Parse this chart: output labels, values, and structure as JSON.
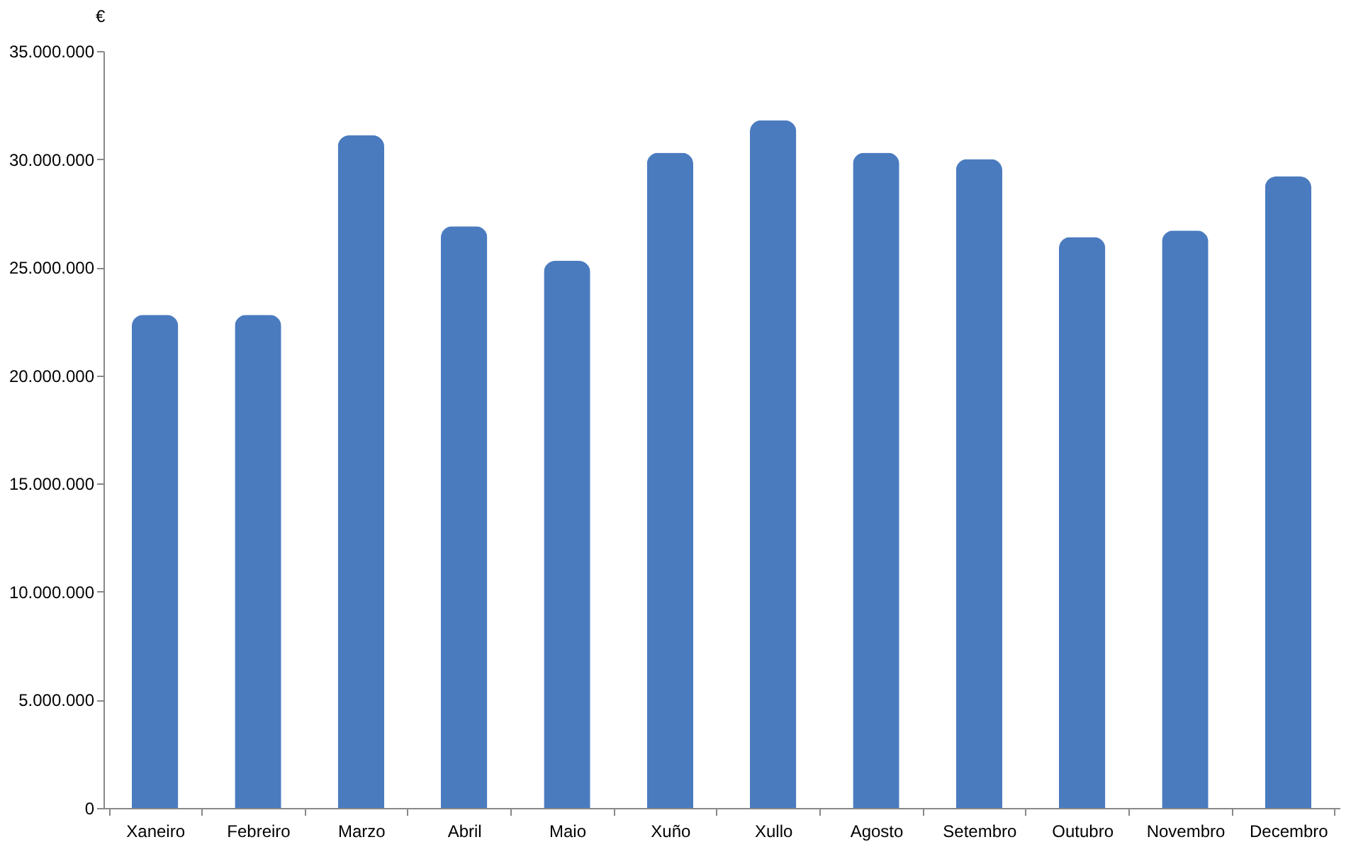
{
  "chart_data": {
    "type": "bar",
    "ylabel": "€",
    "categories": [
      "Xaneiro",
      "Febreiro",
      "Marzo",
      "Abril",
      "Maio",
      "Xuño",
      "Xullo",
      "Agosto",
      "Setembro",
      "Outubro",
      "Novembro",
      "Decembro"
    ],
    "series": [
      {
        "color": "#4a7bbf",
        "values": [
          22800000,
          22800000,
          31100000,
          26900000,
          25300000,
          30300000,
          31800000,
          30300000,
          30000000,
          26400000,
          26700000,
          29200000
        ]
      }
    ],
    "ylim": [
      0,
      35000000
    ],
    "yticks": [
      0,
      {
        "value": 5000000,
        "label": "5.000.000"
      },
      {
        "value": 10000000,
        "label": "10.000.000"
      },
      {
        "value": 15000000,
        "label": "15.000.000"
      },
      {
        "value": 20000000,
        "label": "20.000.000"
      },
      {
        "value": 25000000,
        "label": "25.000.000"
      },
      {
        "value": 30000000,
        "label": "30.000.000"
      },
      {
        "value": 35000000,
        "label": "35.000.000"
      }
    ],
    "grid": false,
    "legend": false
  }
}
